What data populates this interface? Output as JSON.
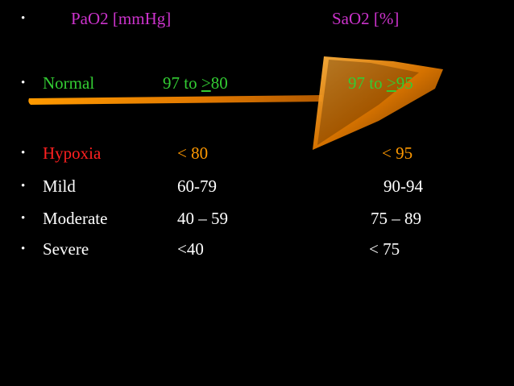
{
  "header": {
    "bullet": "•",
    "pao2_label": "PaO2 [mmHg]",
    "sao2_label": "SaO2 [%]",
    "color": "#cc33cc"
  },
  "normal": {
    "bullet": "•",
    "label": "Normal",
    "pao2_prefix": "97 to ",
    "pao2_sym": ">",
    "pao2_value": "80",
    "sao2_prefix": "97 to ",
    "sao2_sym": ">",
    "sao2_value": "95",
    "color": "#33cc33"
  },
  "hypoxia": {
    "bullet": "•",
    "label": "Hypoxia",
    "pao2": "< 80",
    "sao2": "< 95",
    "label_color": "#ff2020",
    "value_color": "#ff9900"
  },
  "rows": [
    {
      "bullet": "•",
      "label": "Mild",
      "pao2": "60-79",
      "sao2": "90-94"
    },
    {
      "bullet": "•",
      "label": "Moderate",
      "pao2": "40 – 59",
      "sao2": "75 – 89"
    },
    {
      "bullet": "•",
      "label": "Severe",
      "pao2": "<40",
      "sao2": "< 75"
    }
  ],
  "colors": {
    "background": "#000000",
    "text": "#ffffff",
    "accent_bar": "#e68a00"
  }
}
